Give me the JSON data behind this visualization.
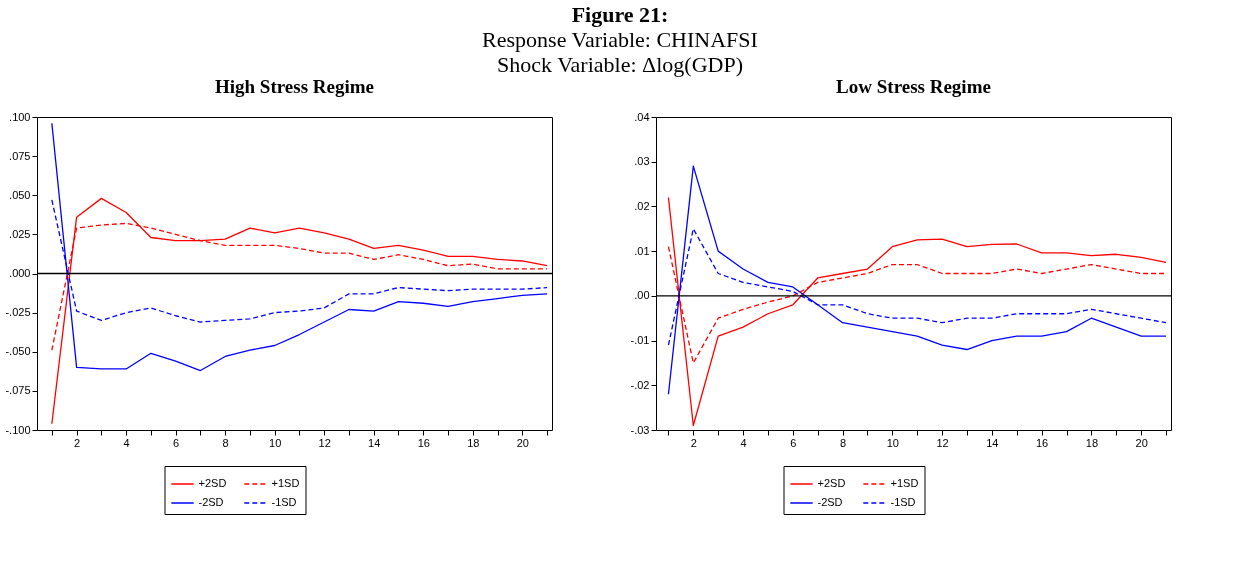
{
  "chart_data": [
    {
      "type": "line",
      "title": "High Stress Regime",
      "annotations": [
        "Figure 21:",
        "Response Variable: CHINAFSI",
        "Shock Variable: Δlog(GDP)"
      ],
      "x": [
        1,
        2,
        3,
        4,
        5,
        6,
        7,
        8,
        9,
        10,
        11,
        12,
        13,
        14,
        15,
        16,
        17,
        18,
        19,
        20,
        21
      ],
      "xlim": [
        0.4,
        21.2
      ],
      "xticks": [
        {
          "value": 1,
          "label": null
        },
        2,
        {
          "value": 3,
          "label": null
        },
        4,
        {
          "value": 5,
          "label": null
        },
        6,
        {
          "value": 7,
          "label": null
        },
        8,
        {
          "value": 9,
          "label": null
        },
        10,
        {
          "value": 11,
          "label": null
        },
        12,
        {
          "value": 13,
          "label": null
        },
        14,
        {
          "value": 15,
          "label": null
        },
        16,
        {
          "value": 17,
          "label": null
        },
        18,
        {
          "value": 19,
          "label": null
        },
        20,
        {
          "value": 21,
          "label": null
        }
      ],
      "ylim": [
        -0.1,
        0.1
      ],
      "yticks": [
        {
          "value": -0.1,
          "label": "-.100"
        },
        {
          "value": -0.075,
          "label": "-.075"
        },
        {
          "value": -0.05,
          "label": "-.050"
        },
        {
          "value": -0.025,
          "label": "-.025"
        },
        {
          "value": 0,
          "label": ".000"
        },
        {
          "value": 0.025,
          "label": ".025"
        },
        {
          "value": 0.05,
          "label": ".050"
        },
        {
          "value": 0.075,
          "label": ".075"
        },
        {
          "value": 0.1,
          "label": ".100"
        }
      ],
      "grid": false,
      "legend": "bottom",
      "ref_lines": [
        {
          "axis": "y",
          "value": 0,
          "color": "#000000"
        }
      ],
      "series": [
        {
          "name": "+2SD",
          "color": "#ff0000",
          "line_style": "solid",
          "values": [
            -0.096,
            0.036,
            0.048,
            0.039,
            0.023,
            0.021,
            0.021,
            0.022,
            0.029,
            0.026,
            0.029,
            0.026,
            0.022,
            0.016,
            0.018,
            0.015,
            0.011,
            0.011,
            0.009,
            0.008,
            0.005
          ]
        },
        {
          "name": "-2SD",
          "color": "#0000ff",
          "line_style": "solid",
          "values": [
            0.096,
            -0.06,
            -0.061,
            -0.061,
            -0.051,
            -0.056,
            -0.062,
            -0.053,
            -0.049,
            -0.046,
            -0.039,
            -0.031,
            -0.023,
            -0.024,
            -0.018,
            -0.019,
            -0.021,
            -0.018,
            -0.016,
            -0.014,
            -0.013
          ]
        },
        {
          "name": "+1SD",
          "color": "#ff0000",
          "line_style": "dashed",
          "values": [
            -0.049,
            0.029,
            0.031,
            0.032,
            0.029,
            0.025,
            0.021,
            0.018,
            0.018,
            0.018,
            0.016,
            0.013,
            0.013,
            0.009,
            0.012,
            0.009,
            0.005,
            0.006,
            0.003,
            0.003,
            0.003
          ]
        },
        {
          "name": "-1SD",
          "color": "#0000ff",
          "line_style": "dashed",
          "values": [
            0.047,
            -0.024,
            -0.03,
            -0.025,
            -0.022,
            -0.027,
            -0.031,
            -0.03,
            -0.029,
            -0.025,
            -0.024,
            -0.022,
            -0.013,
            -0.013,
            -0.009,
            -0.01,
            -0.011,
            -0.01,
            -0.01,
            -0.01,
            -0.009
          ]
        }
      ]
    },
    {
      "type": "line",
      "title": "Low Stress Regime",
      "x": [
        1,
        2,
        3,
        4,
        5,
        6,
        7,
        8,
        9,
        10,
        11,
        12,
        13,
        14,
        15,
        16,
        17,
        18,
        19,
        20,
        21
      ],
      "xlim": [
        0.5,
        21.2
      ],
      "xticks": [
        {
          "value": 1,
          "label": null
        },
        2,
        {
          "value": 3,
          "label": null
        },
        4,
        {
          "value": 5,
          "label": null
        },
        6,
        {
          "value": 7,
          "label": null
        },
        8,
        {
          "value": 9,
          "label": null
        },
        10,
        {
          "value": 11,
          "label": null
        },
        12,
        {
          "value": 13,
          "label": null
        },
        14,
        {
          "value": 15,
          "label": null
        },
        16,
        {
          "value": 17,
          "label": null
        },
        18,
        {
          "value": 19,
          "label": null
        },
        20,
        {
          "value": 21,
          "label": null
        }
      ],
      "ylim": [
        -0.03,
        0.04
      ],
      "yticks": [
        {
          "value": -0.03,
          "label": "-.03"
        },
        {
          "value": -0.02,
          "label": "-.02"
        },
        {
          "value": -0.01,
          "label": "-.01"
        },
        {
          "value": 0,
          "label": ".00"
        },
        {
          "value": 0.01,
          "label": ".01"
        },
        {
          "value": 0.02,
          "label": ".02"
        },
        {
          "value": 0.03,
          "label": ".03"
        },
        {
          "value": 0.04,
          "label": ".04"
        }
      ],
      "grid": false,
      "legend": "bottom",
      "ref_lines": [
        {
          "axis": "y",
          "value": 0,
          "color": "#000000"
        }
      ],
      "series": [
        {
          "name": "+2SD",
          "color": "#ff0000",
          "line_style": "solid",
          "values": [
            0.022,
            -0.029,
            -0.009,
            -0.007,
            -0.004,
            -0.002,
            0.004,
            0.005,
            0.006,
            0.011,
            0.0125,
            0.0127,
            0.011,
            0.0115,
            0.0116,
            0.0096,
            0.0096,
            0.009,
            0.0093,
            0.0086,
            0.0075
          ]
        },
        {
          "name": "-2SD",
          "color": "#0000ff",
          "line_style": "solid",
          "values": [
            -0.022,
            0.029,
            0.01,
            0.006,
            0.003,
            0.002,
            -0.002,
            -0.006,
            -0.007,
            -0.008,
            -0.009,
            -0.011,
            -0.012,
            -0.01,
            -0.009,
            -0.009,
            -0.008,
            -0.005,
            -0.007,
            -0.009,
            -0.009
          ]
        },
        {
          "name": "+1SD",
          "color": "#ff0000",
          "line_style": "dashed",
          "values": [
            0.011,
            -0.015,
            -0.005,
            -0.003,
            -0.0014,
            0,
            0.003,
            0.004,
            0.005,
            0.007,
            0.007,
            0.005,
            0.005,
            0.005,
            0.006,
            0.005,
            0.006,
            0.007,
            0.006,
            0.005,
            0.005
          ]
        },
        {
          "name": "-1SD",
          "color": "#0000ff",
          "line_style": "dashed",
          "values": [
            -0.011,
            0.015,
            0.005,
            0.003,
            0.002,
            0.001,
            -0.002,
            -0.002,
            -0.004,
            -0.005,
            -0.005,
            -0.006,
            -0.005,
            -0.005,
            -0.004,
            -0.004,
            -0.004,
            -0.003,
            -0.004,
            -0.005,
            -0.006
          ]
        }
      ]
    }
  ]
}
